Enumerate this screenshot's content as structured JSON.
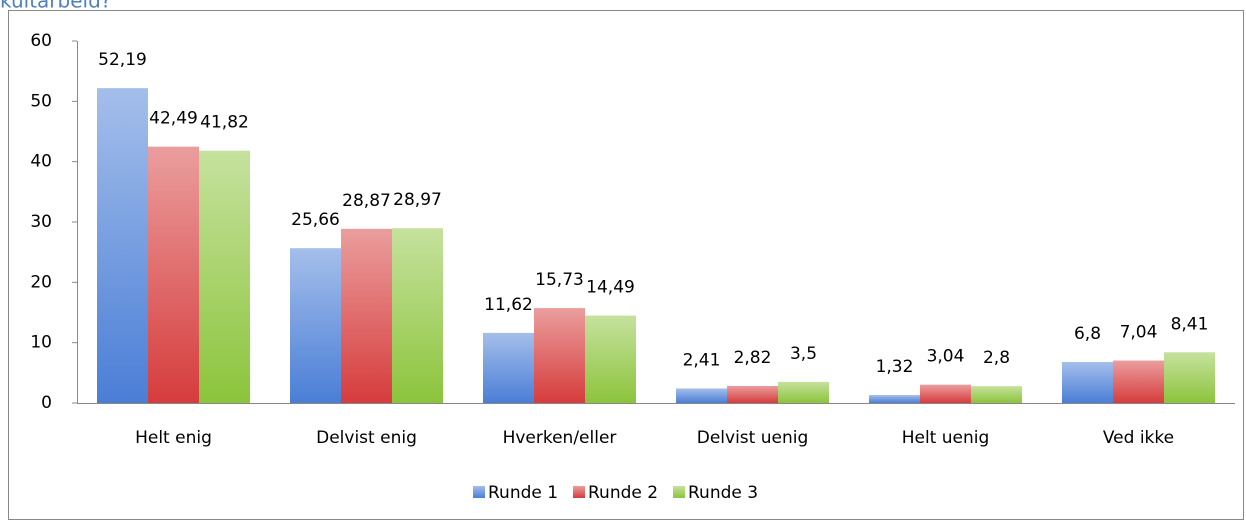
{
  "chart_data": {
    "type": "bar",
    "heading": "kultarbeid?",
    "categories": [
      "Helt enig",
      "Delvist enig",
      "Hverken/eller",
      "Delvist uenig",
      "Helt uenig",
      "Ved ikke"
    ],
    "series": [
      {
        "name": "Runde 1",
        "color": "#4a7ed6",
        "values": [
          52.19,
          25.66,
          11.62,
          2.41,
          1.32,
          6.8
        ],
        "value_labels": [
          "52,19",
          "25,66",
          "11,62",
          "2,41",
          "1,32",
          "6,8"
        ]
      },
      {
        "name": "Runde 2",
        "color": "#d63c3c",
        "values": [
          42.49,
          28.87,
          15.73,
          2.82,
          3.04,
          7.04
        ],
        "value_labels": [
          "42,49",
          "28,87",
          "15,73",
          "2,82",
          "3,04",
          "7,04"
        ]
      },
      {
        "name": "Runde 3",
        "color": "#8cc43c",
        "values": [
          41.82,
          28.97,
          14.49,
          3.5,
          2.8,
          8.41
        ],
        "value_labels": [
          "41,82",
          "28,97",
          "14,49",
          "3,5",
          "2,8",
          "8,41"
        ]
      }
    ],
    "ylim": [
      0,
      60
    ],
    "yticks": [
      0,
      10,
      20,
      30,
      40,
      50,
      60
    ],
    "grid": false,
    "legend": "bottom"
  }
}
